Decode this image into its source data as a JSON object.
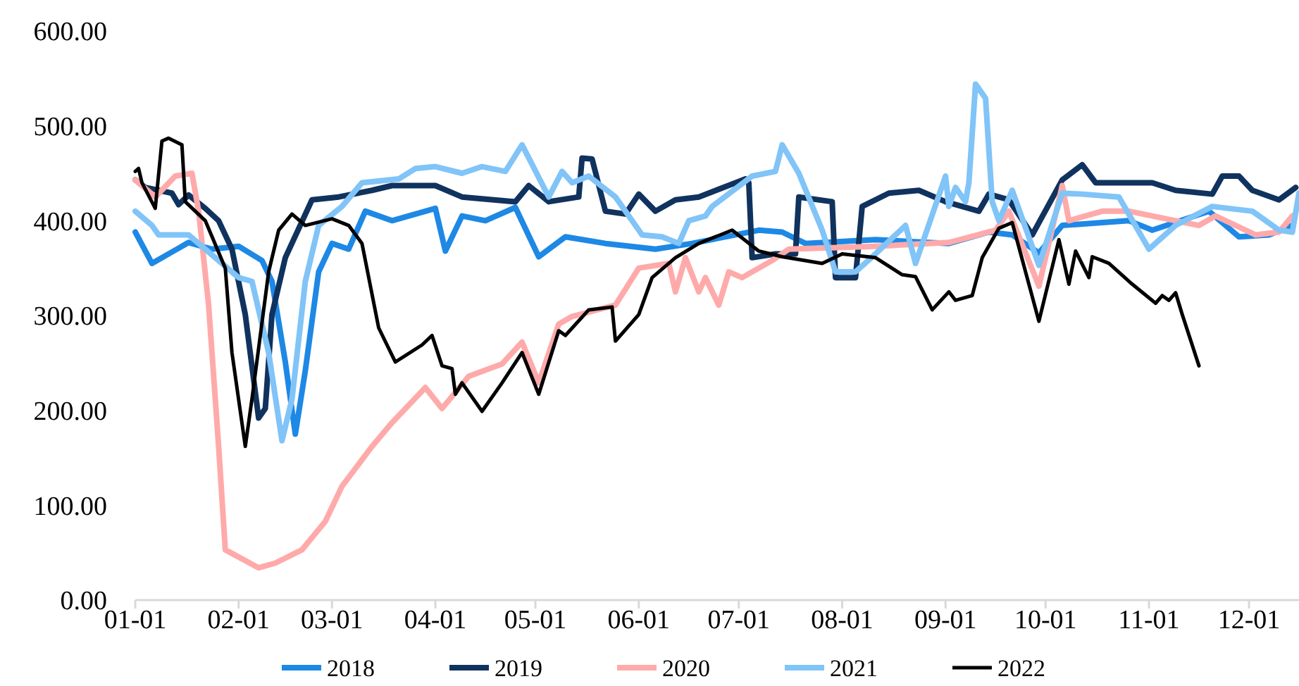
{
  "chart_data": {
    "type": "line",
    "xlim": [
      "--01-01",
      "--12-16"
    ],
    "xticks": [
      {
        "value": "--01-01",
        "label": "01-01"
      },
      {
        "value": "--02-01",
        "label": "02-01"
      },
      {
        "value": "--03-01",
        "label": "03-01"
      },
      {
        "value": "--04-01",
        "label": "04-01"
      },
      {
        "value": "--05-01",
        "label": "05-01"
      },
      {
        "value": "--06-01",
        "label": "06-01"
      },
      {
        "value": "--07-01",
        "label": "07-01"
      },
      {
        "value": "--08-01",
        "label": "08-01"
      },
      {
        "value": "--09-01",
        "label": "09-01"
      },
      {
        "value": "--10-01",
        "label": "10-01"
      },
      {
        "value": "--11-01",
        "label": "11-01"
      },
      {
        "value": "--12-01",
        "label": "12-01"
      }
    ],
    "ylim": [
      0,
      600
    ],
    "yticks": [
      {
        "value": 0,
        "label": "0.00"
      },
      {
        "value": 100,
        "label": "100.00"
      },
      {
        "value": 200,
        "label": "200.00"
      },
      {
        "value": 300,
        "label": "300.00"
      },
      {
        "value": 400,
        "label": "400.00"
      },
      {
        "value": 500,
        "label": "500.00"
      },
      {
        "value": 600,
        "label": "600.00"
      }
    ],
    "grid": false,
    "legend": "bottom",
    "marker": "none",
    "line_style": "solid",
    "series": [
      {
        "name": "2018",
        "color": "#1e88e5",
        "x": [
          "--01-01",
          "--01-06",
          "--01-17",
          "--01-24",
          "--02-01",
          "--02-08",
          "--02-11",
          "--02-15",
          "--02-18",
          "--02-21",
          "--02-25",
          "--03-01",
          "--03-06",
          "--03-11",
          "--03-19",
          "--04-01",
          "--04-04",
          "--04-09",
          "--04-16",
          "--04-25",
          "--05-02",
          "--05-10",
          "--05-22",
          "--06-06",
          "--06-17",
          "--07-07",
          "--07-14",
          "--07-21",
          "--08-11",
          "--09-02",
          "--09-14",
          "--09-21",
          "--09-29",
          "--10-06",
          "--10-26",
          "--11-02",
          "--11-19",
          "--11-28",
          "--12-07",
          "--12-14"
        ],
        "values": [
          388,
          355,
          377,
          370,
          373,
          358,
          336,
          251,
          175,
          242,
          346,
          376,
          370,
          410,
          400,
          413,
          368,
          405,
          400,
          414,
          362,
          383,
          376,
          370,
          376,
          390,
          388,
          376,
          380,
          376,
          388,
          385,
          366,
          395,
          400,
          390,
          410,
          383,
          385,
          395
        ]
      },
      {
        "name": "2019",
        "color": "#10325e",
        "x": [
          "--01-01",
          "--01-04",
          "--01-12",
          "--01-14",
          "--01-17",
          "--01-22",
          "--01-26",
          "--01-30",
          "--02-03",
          "--02-07",
          "--02-09",
          "--02-11",
          "--02-15",
          "--02-23",
          "--03-03",
          "--03-13",
          "--03-19",
          "--04-01",
          "--04-09",
          "--04-25",
          "--04-29",
          "--05-05",
          "--05-14",
          "--05-15",
          "--05-18",
          "--05-22",
          "--05-28",
          "--06-01",
          "--06-06",
          "--06-12",
          "--06-19",
          "--07-03",
          "--07-04",
          "--07-05",
          "--07-12",
          "--07-18",
          "--07-19",
          "--07-29",
          "--07-30",
          "--08-05",
          "--08-07",
          "--08-15",
          "--08-24",
          "--09-01",
          "--09-11",
          "--09-14",
          "--09-20",
          "--09-27",
          "--10-06",
          "--10-12",
          "--10-16",
          "--11-02",
          "--11-09",
          "--11-20",
          "--11-23",
          "--11-28",
          "--12-02",
          "--12-10",
          "--12-15"
        ],
        "values": [
          443,
          435,
          429,
          417,
          427,
          413,
          400,
          370,
          301,
          192,
          202,
          301,
          361,
          422,
          425,
          432,
          437,
          437,
          425,
          420,
          437,
          420,
          425,
          466,
          465,
          410,
          407,
          428,
          410,
          422,
          425,
          444,
          440,
          361,
          365,
          365,
          425,
          420,
          340,
          340,
          415,
          429,
          432,
          420,
          410,
          428,
          422,
          385,
          443,
          459,
          440,
          440,
          432,
          428,
          447,
          447,
          432,
          422,
          435
        ]
      },
      {
        "name": "2020",
        "color": "#ffaaaa",
        "x": [
          "--01-01",
          "--01-07",
          "--01-13",
          "--01-18",
          "--01-20",
          "--01-23",
          "--01-26",
          "--01-28",
          "--02-07",
          "--02-12",
          "--02-20",
          "--02-27",
          "--03-04",
          "--03-13",
          "--03-19",
          "--03-29",
          "--04-03",
          "--04-11",
          "--04-21",
          "--04-27",
          "--05-02",
          "--05-08",
          "--05-12",
          "--05-25",
          "--06-01",
          "--06-10",
          "--06-12",
          "--06-15",
          "--06-19",
          "--06-21",
          "--06-25",
          "--06-28",
          "--07-02",
          "--07-11",
          "--07-16",
          "--08-11",
          "--09-02",
          "--09-16",
          "--09-20",
          "--09-29",
          "--10-06",
          "--10-08",
          "--10-18",
          "--10-26",
          "--11-02",
          "--11-16",
          "--11-21",
          "--12-03",
          "--12-10",
          "--12-14"
        ],
        "values": [
          443,
          425,
          447,
          450,
          410,
          311,
          162,
          53,
          34,
          39,
          53,
          83,
          120,
          162,
          187,
          224,
          202,
          236,
          249,
          272,
          229,
          291,
          299,
          311,
          350,
          355,
          325,
          361,
          325,
          340,
          311,
          346,
          340,
          358,
          370,
          373,
          377,
          390,
          410,
          331,
          437,
          400,
          410,
          410,
          405,
          395,
          405,
          385,
          388,
          405
        ]
      },
      {
        "name": "2021",
        "color": "#80c4f8",
        "x": [
          "--01-01",
          "--01-06",
          "--01-08",
          "--01-17",
          "--01-25",
          "--02-01",
          "--02-05",
          "--02-10",
          "--02-14",
          "--02-17",
          "--02-21",
          "--02-25",
          "--03-04",
          "--03-10",
          "--03-21",
          "--03-26",
          "--04-01",
          "--04-09",
          "--04-15",
          "--04-22",
          "--04-27",
          "--05-05",
          "--05-09",
          "--05-12",
          "--05-17",
          "--05-25",
          "--06-02",
          "--06-08",
          "--06-13",
          "--06-16",
          "--06-21",
          "--06-23",
          "--07-05",
          "--07-12",
          "--07-14",
          "--07-19",
          "--07-26",
          "--07-30",
          "--08-05",
          "--08-11",
          "--08-20",
          "--08-23",
          "--09-01",
          "--09-02",
          "--09-04",
          "--09-07",
          "--09-08",
          "--09-10",
          "--09-13",
          "--09-15",
          "--09-17",
          "--09-21",
          "--09-29",
          "--10-06",
          "--10-12",
          "--10-23",
          "--11-01",
          "--11-09",
          "--11-20",
          "--12-02",
          "--12-10",
          "--12-14",
          "--12-16"
        ],
        "values": [
          410,
          395,
          385,
          385,
          361,
          340,
          336,
          261,
          168,
          212,
          336,
          395,
          415,
          440,
          444,
          455,
          457,
          450,
          457,
          452,
          480,
          425,
          452,
          440,
          447,
          425,
          385,
          383,
          376,
          400,
          405,
          415,
          447,
          452,
          480,
          450,
          390,
          346,
          346,
          365,
          395,
          355,
          447,
          415,
          435,
          420,
          440,
          544,
          529,
          420,
          400,
          432,
          353,
          429,
          428,
          425,
          370,
          395,
          415,
          410,
          390,
          388,
          429
        ]
      },
      {
        "name": "2022",
        "color": "#000000",
        "x": [
          "--01-01",
          "--01-02",
          "--01-03",
          "--01-07",
          "--01-09",
          "--01-11",
          "--01-15",
          "--01-16",
          "--01-22",
          "--01-28",
          "--01-30",
          "--02-03",
          "--02-05",
          "--02-10",
          "--02-13",
          "--02-17",
          "--02-21",
          "--03-01",
          "--03-06",
          "--03-10",
          "--03-15",
          "--03-20",
          "--03-28",
          "--03-31",
          "--04-03",
          "--04-06",
          "--04-07",
          "--04-09",
          "--04-15",
          "--04-21",
          "--04-27",
          "--05-02",
          "--05-08",
          "--05-10",
          "--05-17",
          "--05-24",
          "--05-25",
          "--06-01",
          "--06-05",
          "--06-12",
          "--06-19",
          "--06-29",
          "--07-07",
          "--07-14",
          "--07-26",
          "--08-01",
          "--08-11",
          "--08-19",
          "--08-23",
          "--08-28",
          "--09-02",
          "--09-04",
          "--09-09",
          "--09-12",
          "--09-17",
          "--09-21",
          "--09-29",
          "--10-05",
          "--10-08",
          "--10-10",
          "--10-14",
          "--10-15",
          "--10-20",
          "--10-27",
          "--11-03",
          "--11-05",
          "--11-07",
          "--11-09",
          "--11-11",
          "--11-16"
        ],
        "values": [
          452,
          455,
          440,
          413,
          484,
          487,
          480,
          420,
          400,
          350,
          261,
          162,
          212,
          346,
          390,
          407,
          395,
          402,
          395,
          376,
          287,
          251,
          269,
          279,
          247,
          244,
          217,
          229,
          199,
          229,
          261,
          217,
          284,
          279,
          306,
          309,
          273,
          301,
          340,
          361,
          376,
          390,
          368,
          362,
          355,
          365,
          361,
          343,
          341,
          306,
          325,
          316,
          321,
          361,
          392,
          398,
          294,
          380,
          333,
          368,
          340,
          362,
          355,
          333,
          313,
          321,
          316,
          324,
          301,
          247
        ]
      }
    ]
  }
}
